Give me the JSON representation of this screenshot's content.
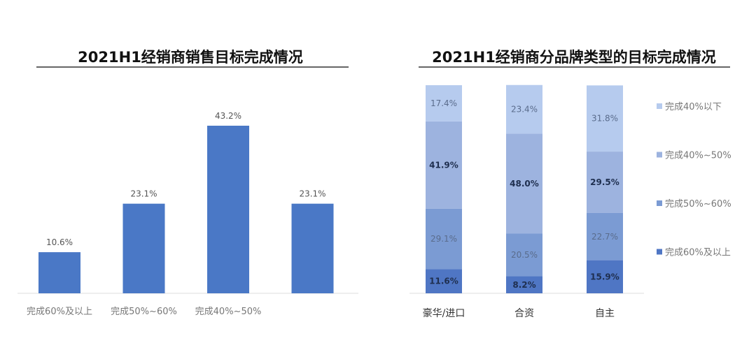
{
  "chart_data": [
    {
      "type": "bar",
      "title": "2021H1经销商销售目标完成情况",
      "categories": [
        "完成60%及以上",
        "完成50%~60%",
        "完成40%~50%",
        ""
      ],
      "values": [
        10.6,
        23.1,
        43.2,
        23.1
      ],
      "data_labels": [
        "10.6%",
        "23.1%",
        "43.2%",
        "23.1%"
      ],
      "xlabel": "",
      "ylabel": "",
      "ylim": [
        0,
        50
      ],
      "grid": false,
      "color": "#4a78c6"
    },
    {
      "type": "bar",
      "stacked": true,
      "title": "2021H1经销商分品牌类型的目标完成情况",
      "categories": [
        "豪华/进口",
        "合资",
        "自主"
      ],
      "series": [
        {
          "name": "完成60%及以上",
          "values": [
            11.6,
            8.2,
            15.9
          ],
          "labels": [
            "11.6%",
            "8.2%",
            "15.9%"
          ],
          "color": "#4f76c4",
          "bold": true
        },
        {
          "name": "完成50%~60%",
          "values": [
            29.1,
            20.5,
            22.7
          ],
          "labels": [
            "29.1%",
            "20.5%",
            "22.7%"
          ],
          "color": "#7b9bd3",
          "bold": false
        },
        {
          "name": "完成40%~50%",
          "values": [
            41.9,
            48.0,
            29.5
          ],
          "labels": [
            "41.9%",
            "48.0%",
            "29.5%"
          ],
          "color": "#9db3df",
          "bold": true
        },
        {
          "name": "完成40%以下",
          "values": [
            17.4,
            23.4,
            31.8
          ],
          "labels": [
            "17.4%",
            "23.4%",
            "31.8%"
          ],
          "color": "#b6cbee",
          "bold": false
        }
      ],
      "legend": [
        "完成40%以下",
        "完成40%~50%",
        "完成50%~60%",
        "完成60%及以上"
      ],
      "legend_placement": "right",
      "ylim": [
        0,
        100
      ],
      "grid": false
    }
  ]
}
